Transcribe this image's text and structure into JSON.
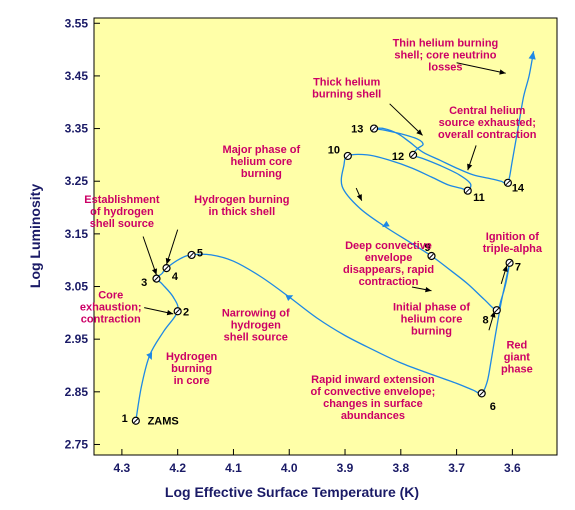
{
  "chart_data": {
    "type": "line",
    "xlabel": "Log Effective Surface Temperature (K)",
    "ylabel": "Log Luminosity",
    "xlim": [
      4.35,
      3.52
    ],
    "ylim": [
      2.73,
      3.56
    ],
    "x_ticks": [
      "4.3",
      "4.2",
      "4.1",
      "4.0",
      "3.9",
      "3.8",
      "3.7",
      "3.6"
    ],
    "y_ticks": [
      "2.75",
      "2.85",
      "2.95",
      "3.05",
      "3.15",
      "3.25",
      "3.35",
      "3.45",
      "3.55"
    ],
    "x_tick_values": [
      4.3,
      4.2,
      4.1,
      4.0,
      3.9,
      3.8,
      3.7,
      3.6
    ],
    "y_tick_values": [
      2.75,
      2.85,
      2.95,
      3.05,
      3.15,
      3.25,
      3.35,
      3.45,
      3.55
    ],
    "background": "#ffffa8",
    "track_color": "#1e88e5",
    "annotation_color": "#cc0066",
    "points": [
      {
        "id": "1",
        "x": 4.275,
        "y": 2.795
      },
      {
        "id": "2",
        "x": 4.2,
        "y": 3.003
      },
      {
        "id": "3",
        "x": 4.238,
        "y": 3.065
      },
      {
        "id": "4",
        "x": 4.22,
        "y": 3.085
      },
      {
        "id": "5",
        "x": 4.175,
        "y": 3.11
      },
      {
        "id": "6",
        "x": 3.655,
        "y": 2.847
      },
      {
        "id": "7",
        "x": 3.605,
        "y": 3.095
      },
      {
        "id": "8",
        "x": 3.628,
        "y": 3.005
      },
      {
        "id": "9",
        "x": 3.745,
        "y": 3.108
      },
      {
        "id": "10",
        "x": 3.895,
        "y": 3.298
      },
      {
        "id": "11",
        "x": 3.68,
        "y": 3.232
      },
      {
        "id": "12",
        "x": 3.778,
        "y": 3.3
      },
      {
        "id": "13",
        "x": 3.848,
        "y": 3.35
      },
      {
        "id": "14",
        "x": 3.608,
        "y": 3.247
      }
    ],
    "track": [
      [
        4.275,
        2.795
      ],
      [
        4.265,
        2.86
      ],
      [
        4.25,
        2.92
      ],
      [
        4.225,
        2.965
      ],
      [
        4.2,
        3.003
      ],
      [
        4.208,
        3.03
      ],
      [
        4.228,
        3.055
      ],
      [
        4.238,
        3.065
      ],
      [
        4.228,
        3.075
      ],
      [
        4.22,
        3.085
      ],
      [
        4.195,
        3.103
      ],
      [
        4.175,
        3.11
      ],
      [
        4.14,
        3.11
      ],
      [
        4.1,
        3.098
      ],
      [
        4.05,
        3.068
      ],
      [
        4.0,
        3.03
      ],
      [
        3.95,
        2.99
      ],
      [
        3.9,
        2.957
      ],
      [
        3.85,
        2.93
      ],
      [
        3.8,
        2.905
      ],
      [
        3.75,
        2.885
      ],
      [
        3.7,
        2.866
      ],
      [
        3.67,
        2.853
      ],
      [
        3.655,
        2.847
      ],
      [
        3.645,
        2.87
      ],
      [
        3.638,
        2.91
      ],
      [
        3.63,
        2.96
      ],
      [
        3.62,
        3.02
      ],
      [
        3.612,
        3.06
      ],
      [
        3.605,
        3.095
      ],
      [
        3.612,
        3.055
      ],
      [
        3.62,
        3.025
      ],
      [
        3.628,
        3.005
      ],
      [
        3.65,
        3.025
      ],
      [
        3.68,
        3.055
      ],
      [
        3.71,
        3.08
      ],
      [
        3.745,
        3.108
      ],
      [
        3.785,
        3.135
      ],
      [
        3.83,
        3.165
      ],
      [
        3.875,
        3.2
      ],
      [
        3.905,
        3.24
      ],
      [
        3.902,
        3.28
      ],
      [
        3.895,
        3.298
      ],
      [
        3.86,
        3.3
      ],
      [
        3.82,
        3.29
      ],
      [
        3.78,
        3.275
      ],
      [
        3.745,
        3.258
      ],
      [
        3.715,
        3.243
      ],
      [
        3.69,
        3.236
      ],
      [
        3.68,
        3.232
      ],
      [
        3.675,
        3.245
      ],
      [
        3.695,
        3.262
      ],
      [
        3.73,
        3.28
      ],
      [
        3.76,
        3.293
      ],
      [
        3.778,
        3.3
      ],
      [
        3.77,
        3.312
      ],
      [
        3.76,
        3.32
      ],
      [
        3.77,
        3.33
      ],
      [
        3.8,
        3.34
      ],
      [
        3.83,
        3.347
      ],
      [
        3.848,
        3.35
      ],
      [
        3.83,
        3.35
      ],
      [
        3.805,
        3.34
      ],
      [
        3.785,
        3.325
      ],
      [
        3.76,
        3.305
      ],
      [
        3.73,
        3.29
      ],
      [
        3.7,
        3.275
      ],
      [
        3.67,
        3.262
      ],
      [
        3.64,
        3.255
      ],
      [
        3.62,
        3.25
      ],
      [
        3.608,
        3.247
      ],
      [
        3.6,
        3.29
      ],
      [
        3.59,
        3.35
      ],
      [
        3.58,
        3.41
      ],
      [
        3.57,
        3.45
      ],
      [
        3.562,
        3.497
      ]
    ],
    "point_labels": [
      {
        "text": "1",
        "x": 4.295,
        "y": 2.8
      },
      {
        "text": "2",
        "x": 4.185,
        "y": 3.003
      },
      {
        "text": "3",
        "x": 4.26,
        "y": 3.059
      },
      {
        "text": "4",
        "x": 4.205,
        "y": 3.07
      },
      {
        "text": "5",
        "x": 4.16,
        "y": 3.115
      },
      {
        "text": "6",
        "x": 3.635,
        "y": 2.823
      },
      {
        "text": "7",
        "x": 3.59,
        "y": 3.088
      },
      {
        "text": "8",
        "x": 3.648,
        "y": 2.987
      },
      {
        "text": "9",
        "x": 3.752,
        "y": 3.125
      },
      {
        "text": "10",
        "x": 3.92,
        "y": 3.31
      },
      {
        "text": "11",
        "x": 3.66,
        "y": 3.22
      },
      {
        "text": "12",
        "x": 3.805,
        "y": 3.298
      },
      {
        "text": "13",
        "x": 3.878,
        "y": 3.35
      },
      {
        "text": "14",
        "x": 3.59,
        "y": 3.238
      }
    ],
    "annotations": [
      {
        "lines": [
          "Thin helium burning",
          "shell; core neutrino",
          "losses"
        ],
        "x": 3.72,
        "y": 3.506
      },
      {
        "lines": [
          "Thick helium",
          "burning shell"
        ],
        "x": 3.897,
        "y": 3.432
      },
      {
        "lines": [
          "Central helium",
          "source exhausted;",
          "overall contraction"
        ],
        "x": 3.645,
        "y": 3.378
      },
      {
        "lines": [
          "Major phase of",
          "helium core",
          "burning"
        ],
        "x": 4.05,
        "y": 3.304
      },
      {
        "lines": [
          "Establishment",
          "of hydrogen",
          "shell source"
        ],
        "x": 4.3,
        "y": 3.209
      },
      {
        "lines": [
          "Hydrogen burning",
          "in thick shell"
        ],
        "x": 4.085,
        "y": 3.209
      },
      {
        "lines": [
          "Ignition of",
          "triple-alpha"
        ],
        "x": 3.6,
        "y": 3.138
      },
      {
        "lines": [
          "Deep convective",
          "envelope",
          "disappears, rapid",
          "contraction"
        ],
        "x": 3.822,
        "y": 3.121
      },
      {
        "lines": [
          "Initial phase of",
          "helium core",
          "burning"
        ],
        "x": 3.745,
        "y": 3.004
      },
      {
        "lines": [
          "Core",
          "exhaustion;",
          "contraction"
        ],
        "x": 4.32,
        "y": 3.027
      },
      {
        "lines": [
          "Narrowing of",
          "hydrogen",
          "shell source"
        ],
        "x": 4.06,
        "y": 2.993
      },
      {
        "lines": [
          "Red",
          "giant",
          "phase"
        ],
        "x": 3.592,
        "y": 2.932
      },
      {
        "lines": [
          "Hydrogen",
          "burning",
          "in core"
        ],
        "x": 4.175,
        "y": 2.91
      },
      {
        "lines": [
          "Rapid inward extension",
          "of convective envelope;",
          "changes in surface",
          "abundances"
        ],
        "x": 3.85,
        "y": 2.867
      }
    ],
    "arrows": [
      [
        [
          3.7,
          3.475
        ],
        [
          3.612,
          3.455
        ]
      ],
      [
        [
          3.82,
          3.397
        ],
        [
          3.761,
          3.337
        ]
      ],
      [
        [
          3.665,
          3.318
        ],
        [
          3.68,
          3.271
        ]
      ],
      [
        [
          3.88,
          3.237
        ],
        [
          3.87,
          3.213
        ]
      ],
      [
        [
          4.262,
          3.145
        ],
        [
          4.238,
          3.072
        ]
      ],
      [
        [
          4.2,
          3.158
        ],
        [
          4.22,
          3.092
        ]
      ],
      [
        [
          3.62,
          3.055
        ],
        [
          3.61,
          3.09
        ]
      ],
      [
        [
          3.78,
          3.049
        ],
        [
          3.745,
          3.042
        ]
      ],
      [
        [
          3.642,
          2.967
        ],
        [
          3.632,
          3.003
        ]
      ],
      [
        [
          4.26,
          3.01
        ],
        [
          4.208,
          2.998
        ]
      ]
    ],
    "track_arrows": [
      {
        "x": 4.25,
        "y": 2.92,
        "dx": 1.0,
        "dy": 2.5
      },
      {
        "x": 4.0,
        "y": 3.03,
        "dx": 2.0,
        "dy": -0.9
      },
      {
        "x": 3.83,
        "y": 3.165,
        "dx": -1.0,
        "dy": 0.6
      }
    ],
    "zams_label": "ZAMS",
    "zams_pos": {
      "x": 4.226,
      "y": 2.796
    }
  }
}
